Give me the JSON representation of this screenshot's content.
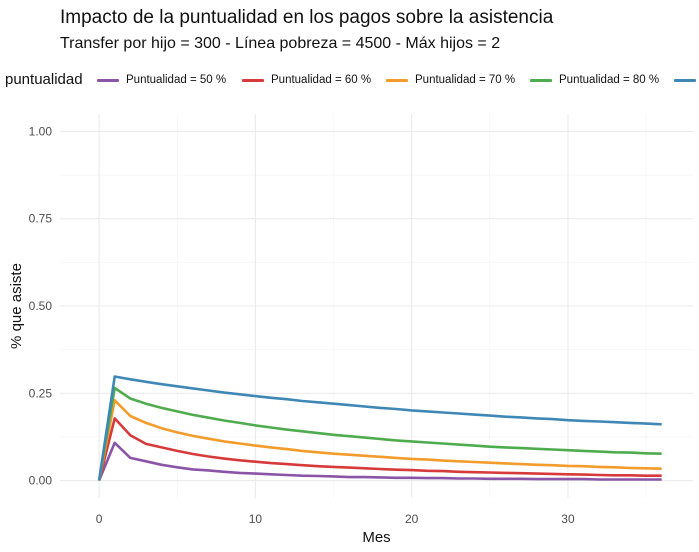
{
  "chart_data": {
    "type": "line",
    "title": "Impacto de la puntualidad en los pagos sobre la asistencia",
    "subtitle": "Transfer por hijo = 300 - Línea pobreza = 4500 - Máx hijos = 2",
    "xlabel": "Mes",
    "ylabel": "% que asiste",
    "xlim": [
      -2.5,
      38
    ],
    "ylim": [
      -0.05,
      1.05
    ],
    "x_ticks": [
      0,
      10,
      20,
      30
    ],
    "x_tick_labels": [
      "0",
      "10",
      "20",
      "30"
    ],
    "y_ticks": [
      0,
      0.25,
      0.5,
      0.75,
      1.0
    ],
    "y_tick_labels": [
      "0.00",
      "0.25",
      "0.50",
      "0.75",
      "1.00"
    ],
    "grid": true,
    "legend": {
      "title": "puntualidad",
      "position": "top"
    },
    "x": [
      0,
      1,
      2,
      3,
      4,
      5,
      6,
      7,
      8,
      9,
      10,
      11,
      12,
      13,
      14,
      15,
      16,
      17,
      18,
      19,
      20,
      21,
      22,
      23,
      24,
      25,
      26,
      27,
      28,
      29,
      30,
      31,
      32,
      33,
      34,
      35,
      36
    ],
    "series": [
      {
        "name": "Puntualidad = 50 %",
        "color": "#8a55a6",
        "values": [
          0,
          0.108,
          0.065,
          0.055,
          0.045,
          0.038,
          0.032,
          0.029,
          0.025,
          0.022,
          0.02,
          0.018,
          0.016,
          0.014,
          0.013,
          0.012,
          0.01,
          0.01,
          0.009,
          0.008,
          0.008,
          0.007,
          0.007,
          0.006,
          0.006,
          0.005,
          0.005,
          0.005,
          0.004,
          0.004,
          0.004,
          0.004,
          0.003,
          0.003,
          0.003,
          0.003,
          0.003
        ]
      },
      {
        "name": "Puntualidad = 60 %",
        "color": "#d63a3a",
        "values": [
          0,
          0.178,
          0.13,
          0.105,
          0.095,
          0.085,
          0.076,
          0.069,
          0.063,
          0.058,
          0.054,
          0.05,
          0.047,
          0.044,
          0.041,
          0.039,
          0.037,
          0.035,
          0.033,
          0.031,
          0.03,
          0.028,
          0.027,
          0.025,
          0.024,
          0.023,
          0.022,
          0.021,
          0.02,
          0.019,
          0.018,
          0.017,
          0.016,
          0.015,
          0.015,
          0.014,
          0.014
        ]
      },
      {
        "name": "Puntualidad = 70 %",
        "color": "#f39b2b",
        "values": [
          0,
          0.23,
          0.185,
          0.165,
          0.15,
          0.138,
          0.128,
          0.12,
          0.112,
          0.106,
          0.1,
          0.095,
          0.09,
          0.085,
          0.081,
          0.077,
          0.074,
          0.071,
          0.068,
          0.065,
          0.062,
          0.06,
          0.057,
          0.055,
          0.053,
          0.051,
          0.049,
          0.047,
          0.045,
          0.044,
          0.042,
          0.041,
          0.039,
          0.038,
          0.036,
          0.035,
          0.034
        ]
      },
      {
        "name": "Puntualidad = 80 %",
        "color": "#4eac4e",
        "values": [
          0,
          0.265,
          0.235,
          0.22,
          0.208,
          0.198,
          0.188,
          0.18,
          0.172,
          0.165,
          0.158,
          0.152,
          0.146,
          0.141,
          0.136,
          0.131,
          0.127,
          0.123,
          0.119,
          0.115,
          0.112,
          0.109,
          0.106,
          0.103,
          0.1,
          0.097,
          0.095,
          0.093,
          0.091,
          0.089,
          0.087,
          0.085,
          0.083,
          0.081,
          0.08,
          0.078,
          0.077
        ]
      },
      {
        "name": "",
        "color": "#3f88b6",
        "values": [
          0,
          0.298,
          0.29,
          0.283,
          0.276,
          0.27,
          0.264,
          0.258,
          0.252,
          0.247,
          0.242,
          0.237,
          0.233,
          0.228,
          0.224,
          0.22,
          0.216,
          0.212,
          0.208,
          0.205,
          0.201,
          0.198,
          0.195,
          0.192,
          0.189,
          0.186,
          0.183,
          0.181,
          0.178,
          0.176,
          0.173,
          0.171,
          0.169,
          0.167,
          0.165,
          0.163,
          0.161
        ]
      }
    ]
  }
}
